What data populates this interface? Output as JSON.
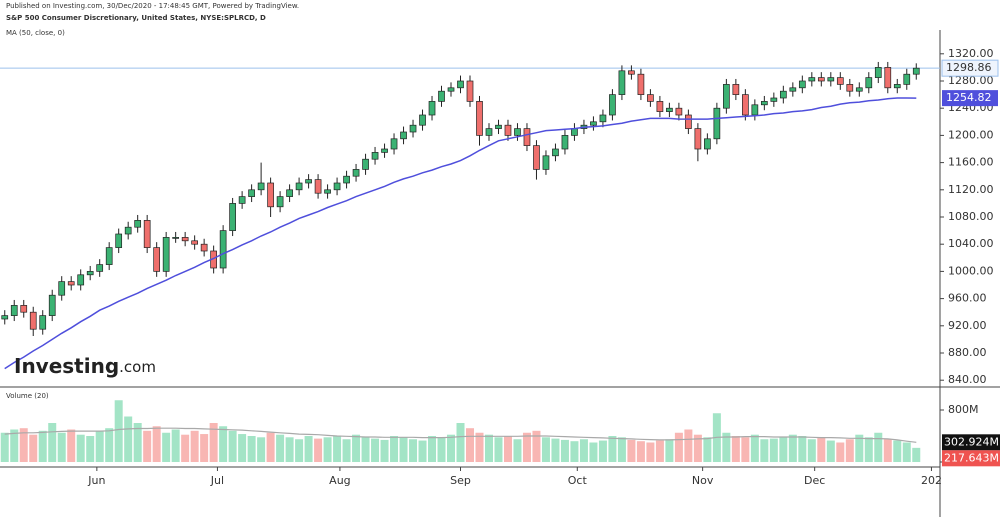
{
  "chart_data": {
    "type": "candlestick",
    "source": "Published on Investing.com, 30/Dec/2020 - 17:48:45 GMT, Powered by TradingView.",
    "title": "S&P 500 Consumer Discretionary, United States, NYSE:SPLRCD, D",
    "logo": [
      "Investing",
      ".com"
    ],
    "up_color": "#3bb273",
    "down_color": "#ef6f6c",
    "price_line_color": "#9cc0ec",
    "open": [
      930,
      935,
      950,
      940,
      915,
      935,
      965,
      985,
      980,
      995,
      1000,
      1010,
      1035,
      1055,
      1065,
      1075,
      1035,
      1000,
      1050,
      1050,
      1045,
      1040,
      1030,
      1005,
      1060,
      1100,
      1110,
      1120,
      1130,
      1095,
      1110,
      1120,
      1130,
      1135,
      1115,
      1120,
      1130,
      1140,
      1150,
      1165,
      1175,
      1180,
      1195,
      1205,
      1215,
      1230,
      1250,
      1265,
      1270,
      1280,
      1250,
      1200,
      1210,
      1215,
      1200,
      1210,
      1185,
      1150,
      1170,
      1180,
      1200,
      1210,
      1215,
      1220,
      1230,
      1260,
      1295,
      1290,
      1260,
      1250,
      1235,
      1240,
      1230,
      1210,
      1180,
      1195,
      1240,
      1275,
      1260,
      1230,
      1245,
      1250,
      1255,
      1265,
      1270,
      1280,
      1285,
      1280,
      1285,
      1275,
      1265,
      1270,
      1285,
      1300,
      1270,
      1275,
      1290
    ],
    "high": [
      943,
      958,
      958,
      948,
      943,
      973,
      993,
      993,
      1003,
      1008,
      1018,
      1043,
      1063,
      1073,
      1083,
      1083,
      1043,
      1058,
      1058,
      1058,
      1053,
      1048,
      1038,
      1068,
      1108,
      1118,
      1128,
      1160,
      1138,
      1118,
      1128,
      1138,
      1143,
      1143,
      1128,
      1138,
      1148,
      1158,
      1173,
      1183,
      1188,
      1203,
      1213,
      1223,
      1238,
      1258,
      1273,
      1278,
      1288,
      1288,
      1258,
      1218,
      1223,
      1223,
      1218,
      1218,
      1193,
      1178,
      1188,
      1208,
      1218,
      1223,
      1228,
      1238,
      1268,
      1303,
      1303,
      1298,
      1268,
      1258,
      1248,
      1248,
      1238,
      1218,
      1203,
      1248,
      1283,
      1283,
      1268,
      1253,
      1258,
      1263,
      1273,
      1278,
      1288,
      1293,
      1293,
      1293,
      1293,
      1283,
      1278,
      1293,
      1308,
      1308,
      1283,
      1298,
      1306
    ],
    "low": [
      922,
      927,
      932,
      905,
      907,
      927,
      957,
      972,
      972,
      987,
      992,
      1002,
      1027,
      1047,
      1057,
      1027,
      992,
      992,
      1042,
      1037,
      1032,
      1022,
      997,
      997,
      1052,
      1092,
      1102,
      1112,
      1080,
      1087,
      1102,
      1112,
      1122,
      1107,
      1107,
      1112,
      1122,
      1132,
      1142,
      1157,
      1167,
      1172,
      1187,
      1197,
      1207,
      1222,
      1242,
      1257,
      1262,
      1242,
      1185,
      1192,
      1202,
      1192,
      1192,
      1177,
      1135,
      1142,
      1162,
      1172,
      1192,
      1202,
      1207,
      1212,
      1222,
      1252,
      1282,
      1252,
      1242,
      1227,
      1227,
      1222,
      1202,
      1162,
      1172,
      1187,
      1232,
      1252,
      1222,
      1222,
      1237,
      1242,
      1247,
      1257,
      1262,
      1272,
      1272,
      1272,
      1267,
      1257,
      1257,
      1262,
      1277,
      1262,
      1262,
      1267,
      1282
    ],
    "close": [
      935,
      950,
      940,
      915,
      935,
      965,
      985,
      980,
      995,
      1000,
      1010,
      1035,
      1055,
      1065,
      1075,
      1035,
      1000,
      1050,
      1050,
      1045,
      1040,
      1030,
      1005,
      1060,
      1100,
      1110,
      1120,
      1130,
      1095,
      1110,
      1120,
      1130,
      1135,
      1115,
      1120,
      1130,
      1140,
      1150,
      1165,
      1175,
      1180,
      1195,
      1205,
      1215,
      1230,
      1250,
      1265,
      1270,
      1280,
      1250,
      1200,
      1210,
      1215,
      1200,
      1210,
      1185,
      1150,
      1170,
      1180,
      1200,
      1210,
      1215,
      1220,
      1230,
      1260,
      1295,
      1290,
      1260,
      1250,
      1235,
      1240,
      1230,
      1210,
      1180,
      1195,
      1240,
      1275,
      1260,
      1230,
      1245,
      1250,
      1255,
      1265,
      1270,
      1280,
      1285,
      1280,
      1285,
      1275,
      1265,
      1270,
      1285,
      1300,
      1270,
      1275,
      1290,
      1298.86
    ],
    "ma": {
      "name": "MA (50, close, 0)",
      "color": "#4f4fdc",
      "values": [
        857,
        866,
        874,
        883,
        891,
        900,
        909,
        917,
        926,
        934,
        943,
        949,
        956,
        962,
        968,
        975,
        981,
        987,
        994,
        1000,
        1006,
        1013,
        1019,
        1026,
        1032,
        1039,
        1045,
        1052,
        1058,
        1065,
        1071,
        1078,
        1083,
        1088,
        1094,
        1099,
        1104,
        1110,
        1115,
        1120,
        1125,
        1131,
        1136,
        1140,
        1145,
        1149,
        1154,
        1158,
        1163,
        1170,
        1178,
        1185,
        1192,
        1195,
        1198,
        1201,
        1204,
        1207,
        1208,
        1209,
        1210,
        1212,
        1213,
        1214,
        1216,
        1218,
        1221,
        1223,
        1225,
        1225,
        1225,
        1224,
        1224,
        1224,
        1224,
        1225,
        1226,
        1227,
        1228,
        1229,
        1230,
        1232,
        1233,
        1235,
        1236,
        1238,
        1241,
        1243,
        1246,
        1248,
        1249,
        1251,
        1252,
        1254,
        1255,
        1255,
        1254.82
      ]
    },
    "xlim": [
      -0.5,
      98.5
    ],
    "xticks": [
      {
        "value": 9.7,
        "label": "Jun"
      },
      {
        "value": 22.4,
        "label": "Jul"
      },
      {
        "value": 35.3,
        "label": "Aug"
      },
      {
        "value": 48,
        "label": "Sep"
      },
      {
        "value": 60.3,
        "label": "Oct"
      },
      {
        "value": 73.5,
        "label": "Nov"
      },
      {
        "value": 85.3,
        "label": "Dec"
      },
      {
        "value": 97.6,
        "label": "202"
      }
    ],
    "ylim": [
      830,
      1355
    ],
    "yticks": [
      {
        "value": 840,
        "label": "840.00"
      },
      {
        "value": 880,
        "label": "880.00"
      },
      {
        "value": 920,
        "label": "920.00"
      },
      {
        "value": 960,
        "label": "960.00"
      },
      {
        "value": 1000,
        "label": "1000.00"
      },
      {
        "value": 1040,
        "label": "1040.00"
      },
      {
        "value": 1080,
        "label": "1080.00"
      },
      {
        "value": 1120,
        "label": "1120.00"
      },
      {
        "value": 1160,
        "label": "1160.00"
      },
      {
        "value": 1200,
        "label": "1200.00"
      },
      {
        "value": 1240,
        "label": "1240.00"
      },
      {
        "value": 1280,
        "label": "1280.00"
      },
      {
        "value": 1320,
        "label": "1320.00"
      }
    ],
    "volume": {
      "name": "Volume (20)",
      "up_color": "#a3e4c6",
      "down_color": "#f8b6b3",
      "ma_color": "#a9a9a9",
      "values": [
        450,
        500,
        520,
        420,
        480,
        600,
        450,
        500,
        420,
        400,
        480,
        520,
        950,
        700,
        600,
        480,
        550,
        450,
        500,
        420,
        480,
        430,
        600,
        550,
        480,
        430,
        400,
        380,
        450,
        420,
        380,
        350,
        400,
        360,
        380,
        400,
        350,
        420,
        380,
        360,
        340,
        400,
        380,
        350,
        330,
        400,
        380,
        420,
        600,
        520,
        450,
        420,
        380,
        400,
        350,
        450,
        480,
        380,
        360,
        340,
        320,
        350,
        300,
        330,
        400,
        380,
        340,
        320,
        300,
        330,
        350,
        450,
        500,
        420,
        380,
        750,
        450,
        400,
        380,
        420,
        350,
        360,
        380,
        420,
        400,
        350,
        380,
        330,
        300,
        350,
        420,
        380,
        450,
        350,
        330,
        300,
        217.643
      ],
      "ma_values": [
        430,
        440,
        450,
        450,
        455,
        465,
        470,
        475,
        475,
        475,
        476,
        480,
        500,
        510,
        515,
        515,
        520,
        520,
        520,
        515,
        515,
        510,
        505,
        500,
        495,
        490,
        480,
        470,
        460,
        450,
        440,
        430,
        425,
        420,
        410,
        400,
        395,
        390,
        385,
        385,
        380,
        380,
        380,
        380,
        375,
        375,
        375,
        380,
        390,
        395,
        395,
        395,
        395,
        395,
        395,
        400,
        400,
        400,
        395,
        390,
        385,
        380,
        375,
        370,
        365,
        360,
        355,
        350,
        345,
        340,
        340,
        345,
        350,
        355,
        360,
        380,
        385,
        385,
        390,
        390,
        390,
        385,
        385,
        385,
        385,
        380,
        375,
        375,
        370,
        365,
        365,
        360,
        360,
        355,
        340,
        320,
        302.924
      ],
      "last_label": "217.643M",
      "ma_last_label": "302.924M",
      "ylim": [
        0,
        1000
      ],
      "yticks": [
        0,
        {
          "value": 800,
          "label": "800M"
        }
      ]
    }
  }
}
